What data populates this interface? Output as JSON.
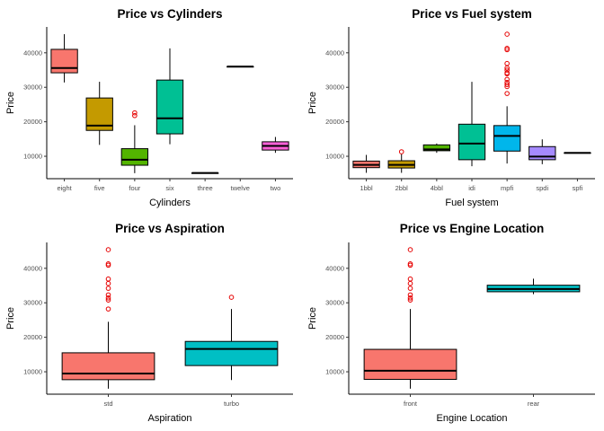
{
  "chart_data": [
    {
      "type": "boxplot",
      "title": "Price vs Cylinders",
      "xlabel": "Cylinders",
      "ylabel": "Price",
      "ylim": [
        3500,
        47500
      ],
      "yticks": [
        10000,
        20000,
        30000,
        40000
      ],
      "categories": [
        "eight",
        "five",
        "four",
        "six",
        "three",
        "twelve",
        "two"
      ],
      "colors": [
        "#F8766D",
        "#C49A00",
        "#53B400",
        "#00C094",
        "#00B6EB",
        "#A58AFF",
        "#FB61D7"
      ],
      "boxes": [
        {
          "min": 31400,
          "q1": 34200,
          "median": 35600,
          "q3": 41000,
          "max": 45400,
          "outliers": []
        },
        {
          "min": 13300,
          "q1": 17500,
          "median": 18900,
          "q3": 26900,
          "max": 31600,
          "outliers": []
        },
        {
          "min": 5100,
          "q1": 7400,
          "median": 9000,
          "q3": 12200,
          "max": 19000,
          "outliers": [
            21800,
            22600
          ]
        },
        {
          "min": 13500,
          "q1": 16500,
          "median": 21000,
          "q3": 32100,
          "max": 41300,
          "outliers": []
        },
        {
          "min": 5150,
          "q1": 5150,
          "median": 5150,
          "q3": 5150,
          "max": 5150,
          "outliers": []
        },
        {
          "min": 36000,
          "q1": 36000,
          "median": 36000,
          "q3": 36000,
          "max": 36000,
          "outliers": []
        },
        {
          "min": 11000,
          "q1": 11800,
          "median": 13000,
          "q3": 14200,
          "max": 15600,
          "outliers": []
        }
      ]
    },
    {
      "type": "boxplot",
      "title": "Price vs Fuel system",
      "xlabel": "Fuel system",
      "ylabel": "Price",
      "ylim": [
        3500,
        47500
      ],
      "yticks": [
        10000,
        20000,
        30000,
        40000
      ],
      "categories": [
        "1bbl",
        "2bbl",
        "4bbl",
        "idi",
        "mpfi",
        "spdi",
        "spfi"
      ],
      "colors": [
        "#F8766D",
        "#C49A00",
        "#53B400",
        "#00C094",
        "#00B6EB",
        "#A58AFF",
        "#FB61D7"
      ],
      "boxes": [
        {
          "min": 5200,
          "q1": 6700,
          "median": 7500,
          "q3": 8600,
          "max": 10400,
          "outliers": []
        },
        {
          "min": 5200,
          "q1": 6600,
          "median": 7500,
          "q3": 8700,
          "max": 10600,
          "outliers": [
            11300
          ]
        },
        {
          "min": 11000,
          "q1": 11600,
          "median": 12000,
          "q3": 13300,
          "max": 13700,
          "outliers": []
        },
        {
          "min": 7100,
          "q1": 9000,
          "median": 13700,
          "q3": 19300,
          "max": 31600,
          "outliers": []
        },
        {
          "min": 7900,
          "q1": 11500,
          "median": 15900,
          "q3": 18900,
          "max": 24500,
          "outliers": [
            28200,
            30200,
            30800,
            31400,
            32300,
            33900,
            34200,
            35000,
            35600,
            36900,
            40900,
            41300,
            45400
          ]
        },
        {
          "min": 7700,
          "q1": 9000,
          "median": 9900,
          "q3": 12800,
          "max": 14900,
          "outliers": []
        },
        {
          "min": 11000,
          "q1": 11000,
          "median": 11000,
          "q3": 11000,
          "max": 11000,
          "outliers": []
        }
      ]
    },
    {
      "type": "boxplot",
      "title": "Price vs Aspiration",
      "xlabel": "Aspiration",
      "ylabel": "Price",
      "ylim": [
        3500,
        47500
      ],
      "yticks": [
        10000,
        20000,
        30000,
        40000
      ],
      "categories": [
        "std",
        "turbo"
      ],
      "colors": [
        "#F8766D",
        "#00BFC4"
      ],
      "boxes": [
        {
          "min": 5100,
          "q1": 7700,
          "median": 9500,
          "q3": 15500,
          "max": 24500,
          "outliers": [
            28200,
            30800,
            31400,
            32300,
            34200,
            35600,
            36900,
            40900,
            41300,
            45400
          ]
        },
        {
          "min": 7600,
          "q1": 11800,
          "median": 16600,
          "q3": 18800,
          "max": 28200,
          "outliers": [
            31600
          ]
        }
      ]
    },
    {
      "type": "boxplot",
      "title": "Price vs Engine Location",
      "xlabel": "Engine Location",
      "ylabel": "Price",
      "ylim": [
        3500,
        47500
      ],
      "yticks": [
        10000,
        20000,
        30000,
        40000
      ],
      "categories": [
        "front",
        "rear"
      ],
      "colors": [
        "#F8766D",
        "#00BFC4"
      ],
      "boxes": [
        {
          "min": 5100,
          "q1": 7800,
          "median": 10300,
          "q3": 16500,
          "max": 28200,
          "outliers": [
            30800,
            31400,
            32300,
            34200,
            35600,
            36900,
            40900,
            41300,
            45400
          ]
        },
        {
          "min": 32500,
          "q1": 33200,
          "median": 34000,
          "q3": 35100,
          "max": 37000,
          "outliers": []
        }
      ]
    }
  ]
}
